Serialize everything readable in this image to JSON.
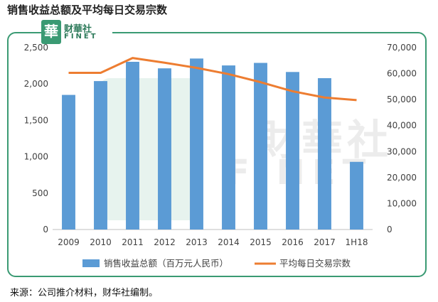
{
  "title": "销售收益总额及平均每日交易宗数",
  "source": "来源：公司推介材料，财华社编制。",
  "logo": {
    "glyph": "華",
    "name_cn": "财華社",
    "name_en": "FINET"
  },
  "watermark": {
    "cn": "財華社",
    "en": "FINET"
  },
  "colors": {
    "bar": "#5b9bd5",
    "line": "#ed7d31",
    "frame": "#3a9a73"
  },
  "chart_data": {
    "type": "bar",
    "categories": [
      "2009",
      "2010",
      "2011",
      "2012",
      "2013",
      "2014",
      "2015",
      "2016",
      "2017",
      "1H18"
    ],
    "series": [
      {
        "name": "销售收益总额（百万元人民币）",
        "type": "bar",
        "axis": "left",
        "values": [
          1850,
          2040,
          2305,
          2215,
          2350,
          2255,
          2290,
          2165,
          2080,
          930
        ]
      },
      {
        "name": "平均每日交易宗数",
        "type": "line",
        "axis": "right",
        "values": [
          60300,
          60300,
          66000,
          64200,
          62200,
          59800,
          56700,
          53200,
          50800,
          49800
        ]
      }
    ],
    "y_left": {
      "range": [
        0,
        2500
      ],
      "ticks": [
        "0",
        "500",
        "1,000",
        "1,500",
        "2,000",
        "2,500"
      ]
    },
    "y_right": {
      "range": [
        0,
        70000
      ],
      "ticks": [
        "0",
        "10,000",
        "20,000",
        "30,000",
        "40,000",
        "50,000",
        "60,000",
        "70,000"
      ]
    },
    "legend_position": "bottom",
    "grid": false
  }
}
